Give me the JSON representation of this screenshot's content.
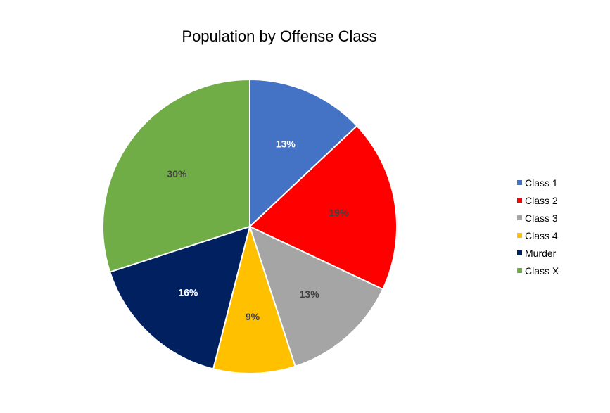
{
  "chart_data": {
    "type": "pie",
    "title": "Population by Offense Class",
    "categories": [
      "Class 1",
      "Class 2",
      "Class 3",
      "Class 4",
      "Murder",
      "Class X"
    ],
    "values": [
      13,
      19,
      13,
      9,
      16,
      30
    ],
    "labels": [
      "13%",
      "19%",
      "13%",
      "9%",
      "16%",
      "30%"
    ],
    "colors": [
      "#4472C4",
      "#FF0000",
      "#A5A5A5",
      "#FFC000",
      "#002060",
      "#70AD47"
    ],
    "label_colors": [
      "#ffffff",
      "#404040",
      "#404040",
      "#404040",
      "#ffffff",
      "#404040"
    ],
    "start_angle_deg": 0,
    "direction": "clockwise",
    "legend_position": "right",
    "unit": "%"
  }
}
